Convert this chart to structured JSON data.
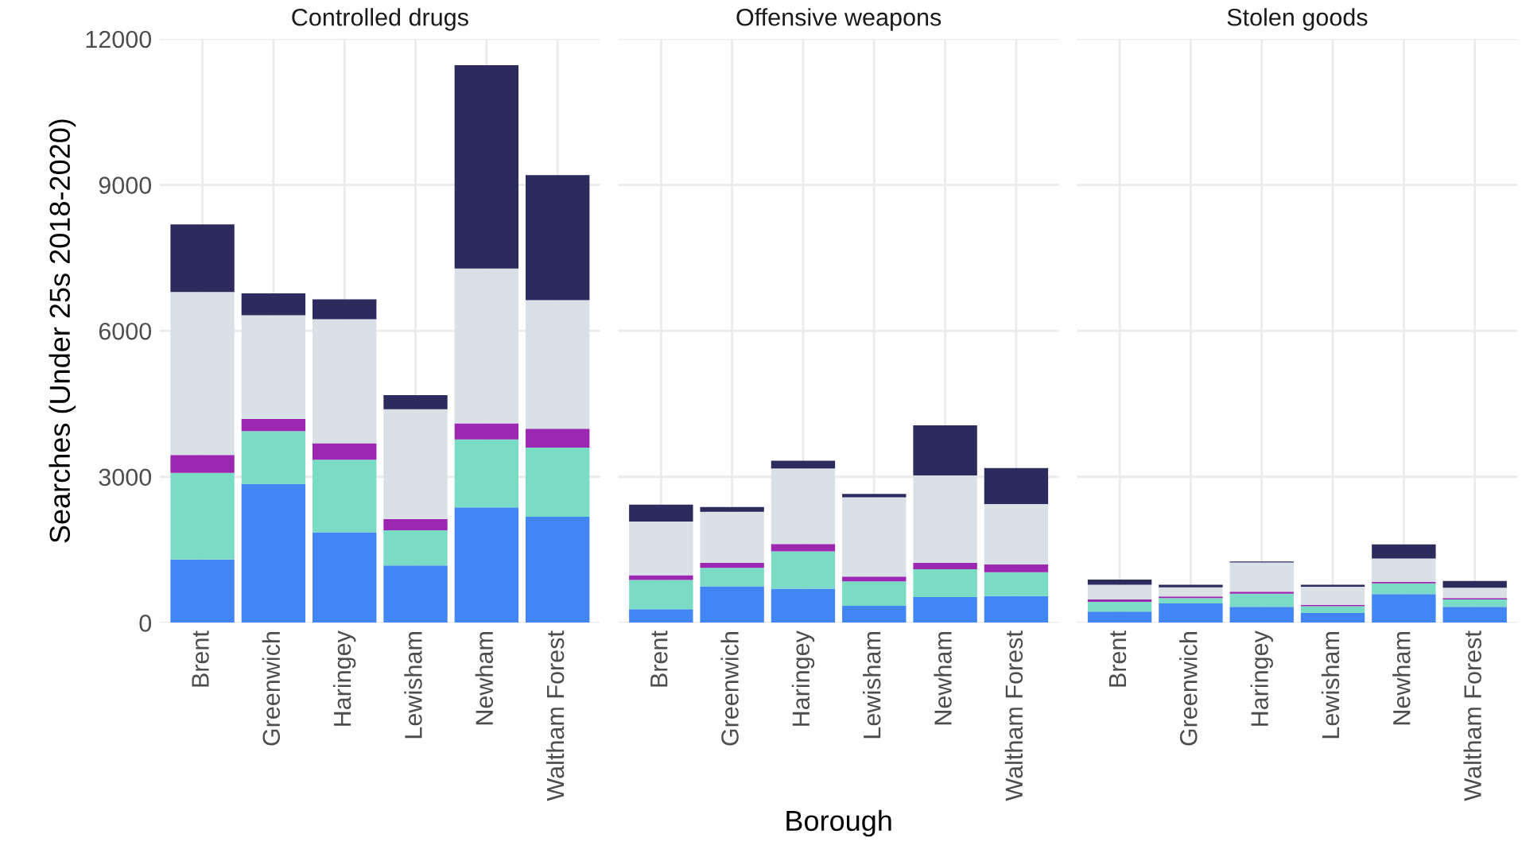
{
  "chart_data": [
    {
      "type": "bar",
      "stacked": true,
      "title": "Controlled drugs",
      "ylabel": "Searches (Under 25s 2018-2020)",
      "categories": [
        "Brent",
        "Greenwich",
        "Haringey",
        "Lewisham",
        "Newham",
        "Waltham Forest"
      ],
      "ylim": [
        0,
        12000
      ],
      "yticks": [
        0,
        3000,
        6000,
        9000,
        12000
      ],
      "grid": true,
      "series": [
        {
          "color": "#4285f4",
          "values": [
            1300,
            2850,
            1860,
            1180,
            2370,
            2180
          ]
        },
        {
          "color": "#7adcc4",
          "values": [
            1780,
            1090,
            1490,
            720,
            1400,
            1420
          ]
        },
        {
          "color": "#9c27b0",
          "values": [
            370,
            250,
            340,
            230,
            330,
            390
          ]
        },
        {
          "color": "#d9e1e6",
          "values": [
            3350,
            2130,
            2550,
            2260,
            3180,
            2640
          ]
        },
        {
          "color": "#2d2a5e",
          "values": [
            1390,
            450,
            410,
            290,
            4180,
            2570
          ]
        }
      ]
    },
    {
      "type": "bar",
      "stacked": true,
      "title": "Offensive weapons",
      "xlabel": "Borough",
      "categories": [
        "Brent",
        "Greenwich",
        "Haringey",
        "Lewisham",
        "Newham",
        "Waltham Forest"
      ],
      "ylim": [
        0,
        12000
      ],
      "yticks": [
        0,
        3000,
        6000,
        9000,
        12000
      ],
      "grid": true,
      "tick_labels": "x",
      "series": [
        {
          "color": "#4285f4",
          "values": [
            280,
            750,
            700,
            350,
            530,
            550
          ]
        },
        {
          "color": "#7adcc4",
          "values": [
            600,
            380,
            770,
            500,
            570,
            490
          ]
        },
        {
          "color": "#9c27b0",
          "values": [
            100,
            100,
            150,
            100,
            130,
            160
          ]
        },
        {
          "color": "#d9e1e6",
          "values": [
            1100,
            1050,
            1550,
            1630,
            1800,
            1240
          ]
        },
        {
          "color": "#2d2a5e",
          "values": [
            350,
            100,
            160,
            70,
            1030,
            740
          ]
        }
      ]
    },
    {
      "type": "bar",
      "stacked": true,
      "title": "Stolen goods",
      "categories": [
        "Brent",
        "Greenwich",
        "Haringey",
        "Lewisham",
        "Newham",
        "Waltham Forest"
      ],
      "ylim": [
        0,
        12000
      ],
      "yticks": [
        0,
        3000,
        6000,
        9000,
        12000
      ],
      "grid": true,
      "tick_labels": "x",
      "series": [
        {
          "color": "#4285f4",
          "values": [
            230,
            400,
            330,
            200,
            590,
            330
          ]
        },
        {
          "color": "#7adcc4",
          "values": [
            200,
            110,
            270,
            140,
            220,
            150
          ]
        },
        {
          "color": "#9c27b0",
          "values": [
            50,
            30,
            40,
            30,
            30,
            30
          ]
        },
        {
          "color": "#d9e1e6",
          "values": [
            300,
            190,
            600,
            370,
            480,
            210
          ]
        },
        {
          "color": "#2d2a5e",
          "values": [
            110,
            50,
            20,
            40,
            290,
            140
          ]
        }
      ]
    }
  ]
}
